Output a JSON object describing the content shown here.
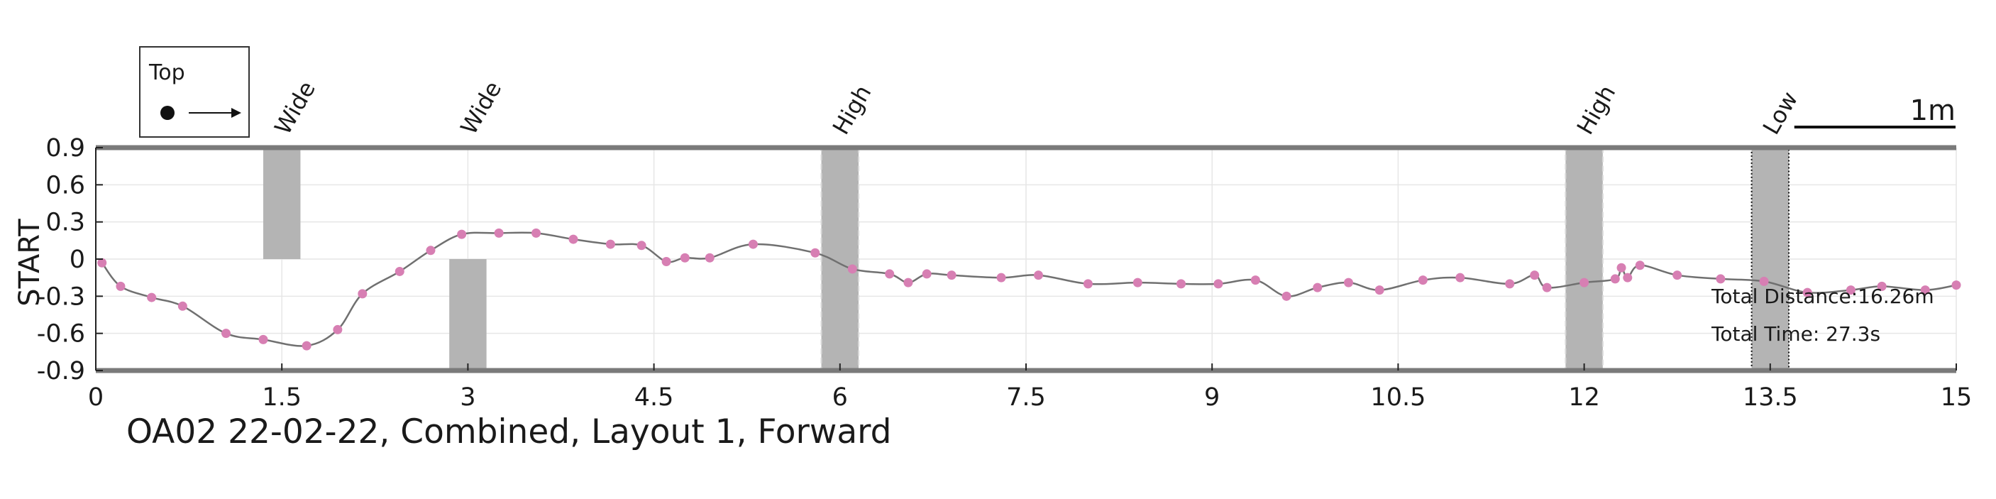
{
  "chart_data": {
    "type": "line",
    "title": "OA02 22-02-22, Combined, Layout 1, Forward",
    "xlabel": "",
    "ylabel": "START",
    "xlim": [
      0,
      15
    ],
    "ylim": [
      -0.9,
      0.9
    ],
    "xticks": [
      0,
      1.5,
      3,
      4.5,
      6,
      7.5,
      9,
      10.5,
      12,
      13.5,
      15
    ],
    "xtick_labels": [
      "0",
      "1.5",
      "3",
      "4.5",
      "6",
      "7.5",
      "9",
      "10.5",
      "12",
      "13.5",
      "15"
    ],
    "yticks": [
      0.9,
      0.6,
      0.3,
      0,
      -0.3,
      -0.6,
      -0.9
    ],
    "ytick_labels": [
      "0.9",
      "0.6",
      "0.3",
      "0",
      "-0.3",
      "-0.6",
      "-0.9"
    ],
    "grid": true,
    "line_color": "#707070",
    "marker_color": "#d77fb3",
    "obstacle_color": "#b4b4b4",
    "points": [
      [
        0.05,
        -0.03
      ],
      [
        0.2,
        -0.22
      ],
      [
        0.45,
        -0.31
      ],
      [
        0.7,
        -0.38
      ],
      [
        1.05,
        -0.6
      ],
      [
        1.35,
        -0.65
      ],
      [
        1.7,
        -0.7
      ],
      [
        1.95,
        -0.57
      ],
      [
        2.15,
        -0.28
      ],
      [
        2.45,
        -0.1
      ],
      [
        2.7,
        0.07
      ],
      [
        2.95,
        0.2
      ],
      [
        3.25,
        0.21
      ],
      [
        3.55,
        0.21
      ],
      [
        3.85,
        0.16
      ],
      [
        4.15,
        0.12
      ],
      [
        4.4,
        0.11
      ],
      [
        4.6,
        -0.02
      ],
      [
        4.75,
        0.01
      ],
      [
        4.95,
        0.01
      ],
      [
        5.3,
        0.12
      ],
      [
        5.8,
        0.05
      ],
      [
        6.1,
        -0.08
      ],
      [
        6.4,
        -0.12
      ],
      [
        6.55,
        -0.19
      ],
      [
        6.7,
        -0.12
      ],
      [
        6.9,
        -0.13
      ],
      [
        7.3,
        -0.15
      ],
      [
        7.6,
        -0.13
      ],
      [
        8.0,
        -0.2
      ],
      [
        8.4,
        -0.19
      ],
      [
        8.75,
        -0.2
      ],
      [
        9.05,
        -0.2
      ],
      [
        9.35,
        -0.17
      ],
      [
        9.6,
        -0.3
      ],
      [
        9.85,
        -0.23
      ],
      [
        10.1,
        -0.19
      ],
      [
        10.35,
        -0.25
      ],
      [
        10.7,
        -0.17
      ],
      [
        11.0,
        -0.15
      ],
      [
        11.4,
        -0.2
      ],
      [
        11.6,
        -0.13
      ],
      [
        11.7,
        -0.23
      ],
      [
        12.0,
        -0.19
      ],
      [
        12.25,
        -0.16
      ],
      [
        12.3,
        -0.07
      ],
      [
        12.35,
        -0.15
      ],
      [
        12.45,
        -0.05
      ],
      [
        12.75,
        -0.13
      ],
      [
        13.1,
        -0.16
      ],
      [
        13.45,
        -0.18
      ],
      [
        13.8,
        -0.27
      ],
      [
        14.15,
        -0.25
      ],
      [
        14.4,
        -0.22
      ],
      [
        14.75,
        -0.25
      ],
      [
        15.0,
        -0.21
      ]
    ],
    "obstacles": [
      {
        "type": "Wide",
        "x_start": 1.35,
        "x_end": 1.65,
        "y_min": 0,
        "y_max": 0.9,
        "style": "plain"
      },
      {
        "type": "Wide",
        "x_start": 2.85,
        "x_end": 3.15,
        "y_min": -0.9,
        "y_max": 0,
        "style": "plain"
      },
      {
        "type": "High",
        "x_start": 5.85,
        "x_end": 6.15,
        "y_min": -0.9,
        "y_max": 0.9,
        "style": "dashed"
      },
      {
        "type": "High",
        "x_start": 11.85,
        "x_end": 12.15,
        "y_min": -0.9,
        "y_max": 0.9,
        "style": "dashed"
      },
      {
        "type": "Low",
        "x_start": 13.35,
        "x_end": 13.65,
        "y_min": -0.9,
        "y_max": 0.9,
        "style": "dotted"
      }
    ],
    "legend": {
      "title": "Top",
      "placement": "top-left"
    },
    "scale_bar": {
      "label": "1m",
      "length": 1
    },
    "annotations": {
      "total_distance": "Total Distance:16.26m",
      "total_time": "Total Time: 27.3s"
    }
  }
}
